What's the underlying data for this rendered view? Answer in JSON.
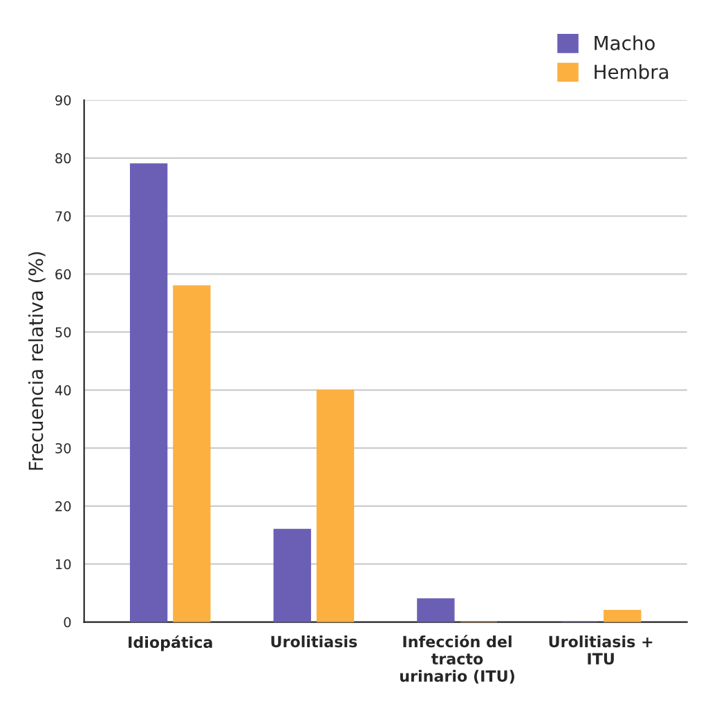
{
  "chart_data": {
    "type": "bar",
    "ylabel": "Frecuencia relativa (%)",
    "categories": [
      "Idiopática",
      "Urolitiasis",
      "Infección del tracto urinario (ITU)",
      "Urolitiasis + ITU"
    ],
    "series": [
      {
        "name": "Macho",
        "color": "#6b5fb5",
        "values": [
          79,
          16,
          4,
          0
        ]
      },
      {
        "name": "Hembra",
        "color": "#fbb040",
        "values": [
          58,
          40,
          0,
          2
        ]
      }
    ],
    "ylim": [
      0,
      90
    ],
    "yticks": [
      0,
      10,
      20,
      30,
      40,
      50,
      60,
      70,
      80,
      90
    ],
    "grid": "y",
    "legend": "top right"
  }
}
